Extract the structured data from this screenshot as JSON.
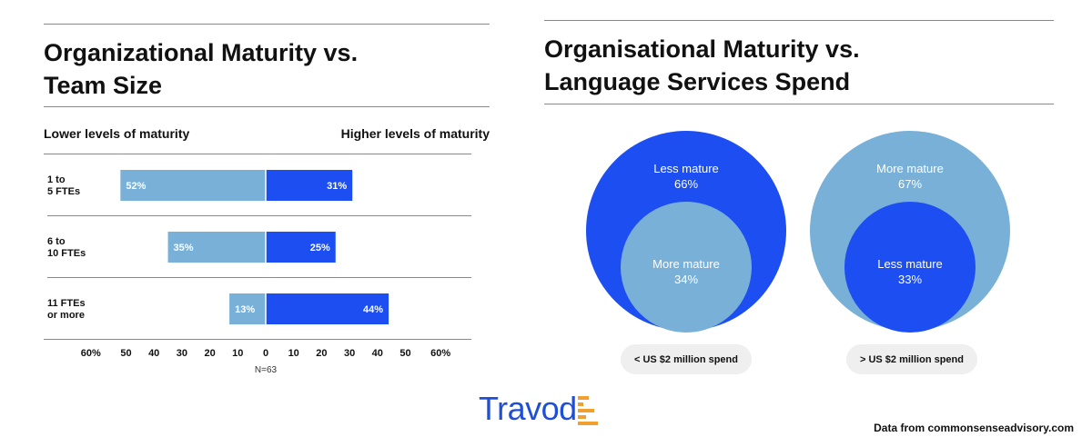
{
  "left_chart": {
    "title_line1": "Organizational Maturity vs.",
    "title_line2": "Team Size",
    "lower_label": "Lower levels of maturity",
    "higher_label": "Higher levels of maturity",
    "note": "N=63"
  },
  "right_chart": {
    "title_line1": "Organisational Maturity vs.",
    "title_line2": "Language Services Spend"
  },
  "colors": {
    "lower": "#78b0d8",
    "higher": "#1c4ef2",
    "rule": "#8a8a8a",
    "pill": "#efefef",
    "logo": "#1f4fd6",
    "logo_accent": "#f0a030"
  },
  "logo": {
    "text": "Travod"
  },
  "source": "Data from commonsenseadvisory.com",
  "chart_data": [
    {
      "type": "bar",
      "orientation": "horizontal-diverging",
      "categories": [
        [
          "1 to",
          "5 FTEs"
        ],
        [
          "6 to",
          "10 FTEs"
        ],
        [
          "11 FTEs",
          "or more"
        ]
      ],
      "series": [
        {
          "name": "Lower levels of maturity",
          "values": [
            52,
            35,
            13
          ],
          "labels": [
            "52%",
            "35%",
            "13%"
          ]
        },
        {
          "name": "Higher levels of maturity",
          "values": [
            31,
            25,
            44
          ],
          "labels": [
            "31%",
            "25%",
            "44%"
          ]
        }
      ],
      "xlim": [
        -60,
        60
      ],
      "ticks": [
        -60,
        -50,
        -40,
        -30,
        -20,
        -10,
        0,
        10,
        20,
        30,
        40,
        50,
        60
      ],
      "tick_labels": [
        "60%",
        "50",
        "40",
        "30",
        "20",
        "10",
        "0",
        "10",
        "20",
        "30",
        "40",
        "50",
        "60%"
      ]
    },
    {
      "type": "nested-circles",
      "groups": [
        {
          "label": "< US $2 million spend",
          "outer": {
            "label": "Less mature",
            "value": 66,
            "value_label": "66%",
            "color": "#1c4ef2"
          },
          "inner": {
            "label": "More mature",
            "value": 34,
            "value_label": "34%",
            "color": "#78b0d8"
          }
        },
        {
          "label": "> US $2 million spend",
          "outer": {
            "label": "More mature",
            "value": 67,
            "value_label": "67%",
            "color": "#78b0d8"
          },
          "inner": {
            "label": "Less mature",
            "value": 33,
            "value_label": "33%",
            "color": "#1c4ef2"
          }
        }
      ]
    }
  ]
}
